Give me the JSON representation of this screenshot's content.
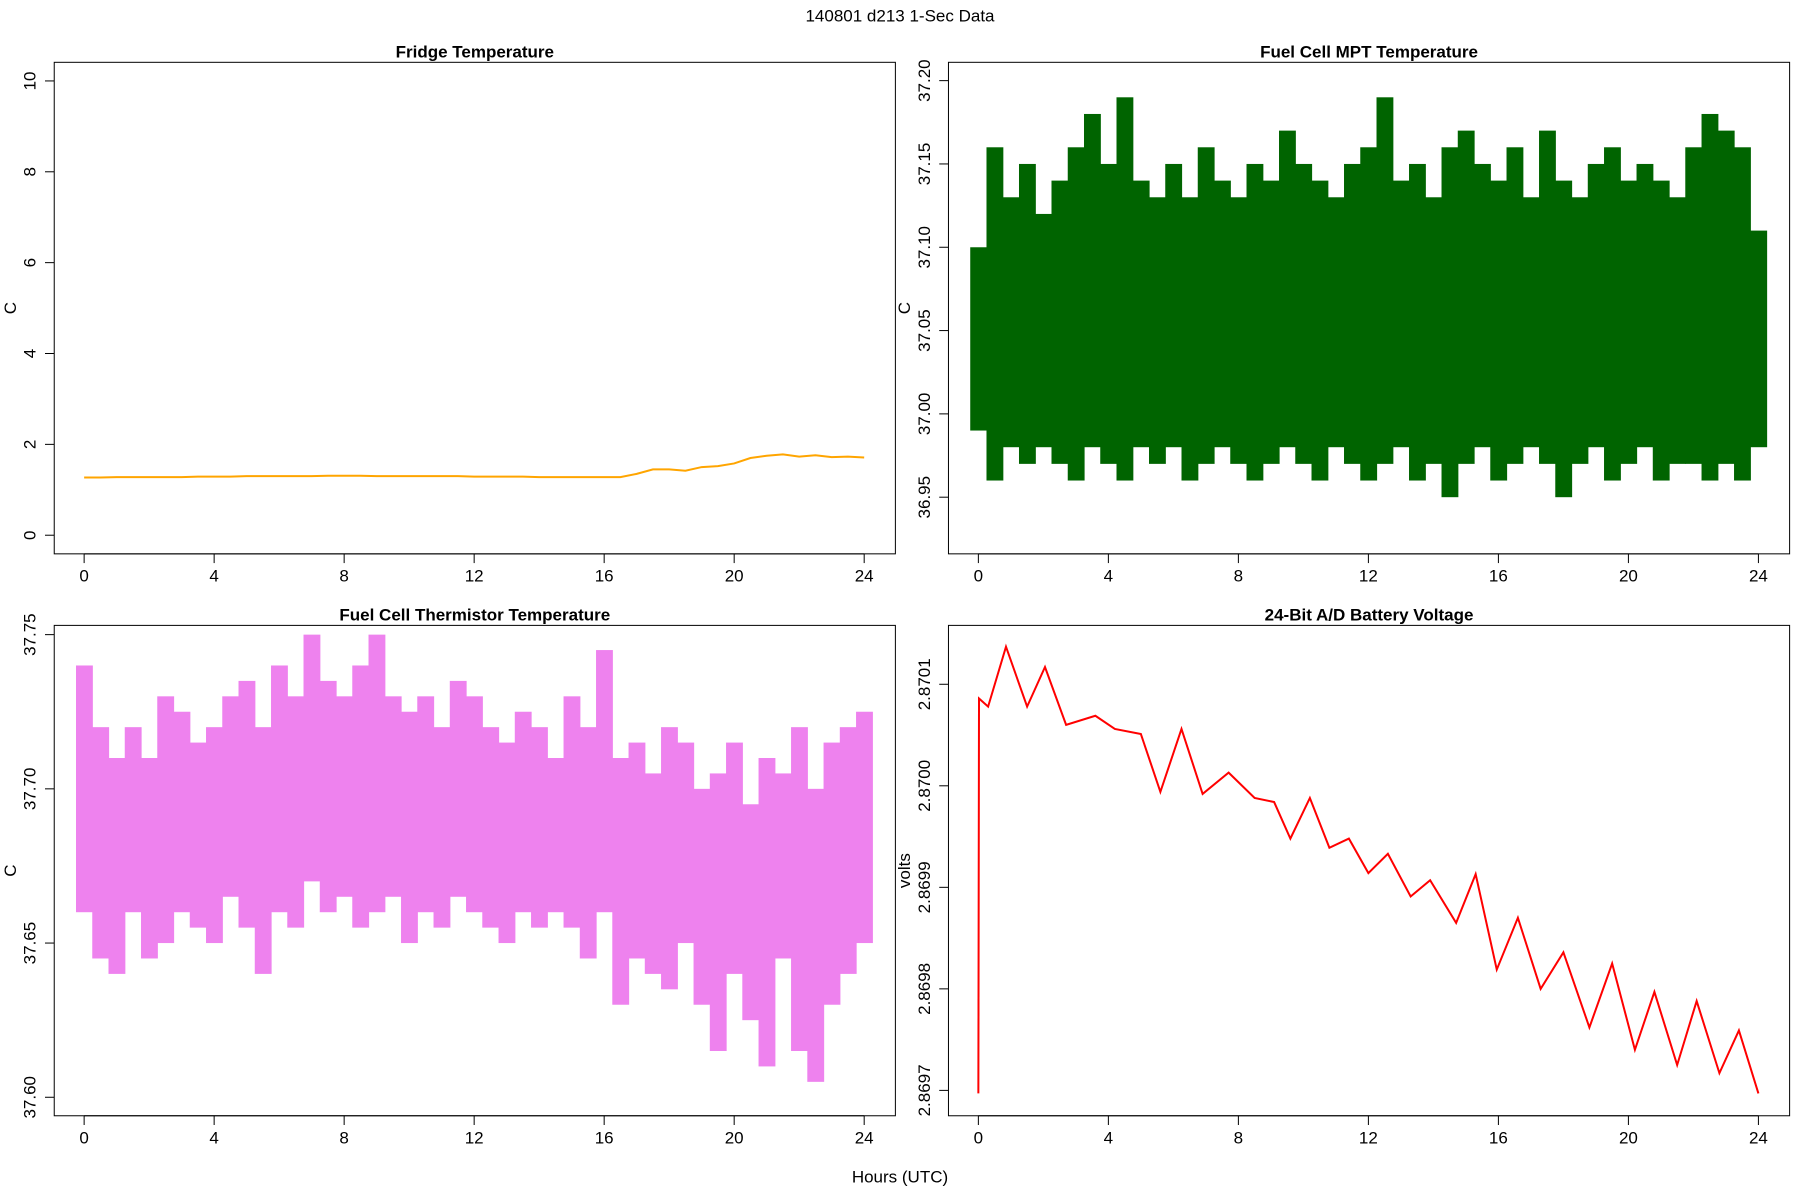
{
  "title": "140801   d213   1-Sec Data",
  "xlabel": "Hours (UTC)",
  "chart_data": [
    {
      "type": "line",
      "title": "Fridge Temperature",
      "ylabel": "C",
      "color": "#ffa500",
      "x": [
        0,
        0.5,
        1,
        1.5,
        2,
        2.5,
        3,
        3.5,
        4,
        4.5,
        5,
        5.5,
        6,
        6.5,
        7,
        7.5,
        8,
        8.5,
        9,
        9.5,
        10,
        10.5,
        11,
        11.5,
        12,
        12.5,
        13,
        13.5,
        14,
        14.5,
        15,
        15.5,
        16,
        16.5,
        17,
        17.5,
        18,
        18.5,
        19,
        19.5,
        20,
        20.5,
        21,
        21.5,
        22,
        22.5,
        23,
        23.5,
        24
      ],
      "values": [
        1.27,
        1.27,
        1.28,
        1.28,
        1.28,
        1.28,
        1.28,
        1.29,
        1.29,
        1.29,
        1.3,
        1.3,
        1.3,
        1.3,
        1.3,
        1.31,
        1.31,
        1.31,
        1.3,
        1.3,
        1.3,
        1.3,
        1.3,
        1.3,
        1.29,
        1.29,
        1.29,
        1.29,
        1.28,
        1.28,
        1.28,
        1.28,
        1.28,
        1.28,
        1.35,
        1.45,
        1.45,
        1.42,
        1.5,
        1.52,
        1.58,
        1.7,
        1.75,
        1.78,
        1.73,
        1.76,
        1.72,
        1.73,
        1.71
      ],
      "xlim": [
        -0.92,
        24.96
      ],
      "xticks": [
        0,
        4,
        8,
        12,
        16,
        20,
        24
      ],
      "ylim": [
        -0.41,
        10.41
      ],
      "yticks": [
        0,
        2,
        4,
        6,
        8,
        10
      ]
    },
    {
      "type": "band",
      "title": "Fuel Cell MPT Temperature",
      "ylabel": "C",
      "color": "#006400",
      "x": [
        0,
        0.5,
        1,
        1.5,
        2,
        2.5,
        3,
        3.5,
        4,
        4.5,
        5,
        5.5,
        6,
        6.5,
        7,
        7.5,
        8,
        8.5,
        9,
        9.5,
        10,
        10.5,
        11,
        11.5,
        12,
        12.5,
        13,
        13.5,
        14,
        14.5,
        15,
        15.5,
        16,
        16.5,
        17,
        17.5,
        18,
        18.5,
        19,
        19.5,
        20,
        20.5,
        21,
        21.5,
        22,
        22.5,
        23,
        23.5,
        24
      ],
      "low": [
        36.99,
        36.96,
        36.98,
        36.97,
        36.98,
        36.97,
        36.96,
        36.98,
        36.97,
        36.96,
        36.98,
        36.97,
        36.98,
        36.96,
        36.97,
        36.98,
        36.97,
        36.96,
        36.97,
        36.98,
        36.97,
        36.96,
        36.98,
        36.97,
        36.96,
        36.97,
        36.98,
        36.96,
        36.97,
        36.95,
        36.97,
        36.98,
        36.96,
        36.97,
        36.98,
        36.97,
        36.95,
        36.97,
        36.98,
        36.96,
        36.97,
        36.98,
        36.96,
        36.97,
        36.97,
        36.96,
        36.97,
        36.96,
        36.98
      ],
      "high": [
        37.1,
        37.16,
        37.13,
        37.15,
        37.12,
        37.14,
        37.16,
        37.18,
        37.15,
        37.19,
        37.14,
        37.13,
        37.15,
        37.13,
        37.16,
        37.14,
        37.13,
        37.15,
        37.14,
        37.17,
        37.15,
        37.14,
        37.13,
        37.15,
        37.16,
        37.19,
        37.14,
        37.15,
        37.13,
        37.16,
        37.17,
        37.15,
        37.14,
        37.16,
        37.13,
        37.17,
        37.14,
        37.13,
        37.15,
        37.16,
        37.14,
        37.15,
        37.14,
        37.13,
        37.16,
        37.18,
        37.17,
        37.16,
        37.11
      ],
      "xlim": [
        -0.92,
        24.96
      ],
      "xticks": [
        0,
        4,
        8,
        12,
        16,
        20,
        24
      ],
      "ylim": [
        36.916,
        37.211
      ],
      "yticks": [
        36.95,
        {
          "value": 37,
          "label": "37.00"
        },
        37.05,
        {
          "value": 37.1,
          "label": "37.10"
        },
        37.15,
        {
          "value": 37.2,
          "label": "37.20"
        }
      ]
    },
    {
      "type": "band",
      "title": "Fuel Cell Thermistor Temperature",
      "ylabel": "C",
      "color": "#ee82ee",
      "x": [
        0,
        0.5,
        1,
        1.5,
        2,
        2.5,
        3,
        3.5,
        4,
        4.5,
        5,
        5.5,
        6,
        6.5,
        7,
        7.5,
        8,
        8.5,
        9,
        9.5,
        10,
        10.5,
        11,
        11.5,
        12,
        12.5,
        13,
        13.5,
        14,
        14.5,
        15,
        15.5,
        16,
        16.5,
        17,
        17.5,
        18,
        18.5,
        19,
        19.5,
        20,
        20.5,
        21,
        21.5,
        22,
        22.5,
        23,
        23.5,
        24
      ],
      "low": [
        37.66,
        37.645,
        37.64,
        37.66,
        37.645,
        37.65,
        37.66,
        37.655,
        37.65,
        37.665,
        37.655,
        37.64,
        37.66,
        37.655,
        37.67,
        37.66,
        37.665,
        37.655,
        37.66,
        37.665,
        37.65,
        37.66,
        37.655,
        37.665,
        37.66,
        37.655,
        37.65,
        37.66,
        37.655,
        37.66,
        37.655,
        37.645,
        37.66,
        37.63,
        37.645,
        37.64,
        37.635,
        37.65,
        37.63,
        37.615,
        37.64,
        37.625,
        37.61,
        37.645,
        37.615,
        37.605,
        37.63,
        37.64,
        37.65
      ],
      "high": [
        37.74,
        37.72,
        37.71,
        37.72,
        37.71,
        37.73,
        37.725,
        37.715,
        37.72,
        37.73,
        37.735,
        37.72,
        37.74,
        37.73,
        37.75,
        37.735,
        37.73,
        37.74,
        37.75,
        37.73,
        37.725,
        37.73,
        37.72,
        37.735,
        37.73,
        37.72,
        37.715,
        37.725,
        37.72,
        37.71,
        37.73,
        37.72,
        37.745,
        37.71,
        37.715,
        37.705,
        37.72,
        37.715,
        37.7,
        37.705,
        37.715,
        37.695,
        37.71,
        37.705,
        37.72,
        37.7,
        37.715,
        37.72,
        37.725
      ],
      "xlim": [
        -0.92,
        24.96
      ],
      "xticks": [
        0,
        4,
        8,
        12,
        16,
        20,
        24
      ],
      "ylim": [
        37.594,
        37.753
      ],
      "yticks": [
        {
          "value": 37.6,
          "label": "37.60"
        },
        37.65,
        {
          "value": 37.7,
          "label": "37.70"
        },
        37.75
      ]
    },
    {
      "type": "line",
      "title": "24-Bit A/D Battery Voltage",
      "ylabel": "volts",
      "color": "#ff0000",
      "x": [
        0,
        0.02,
        0.3,
        0.85,
        1.5,
        2.05,
        2.7,
        3.6,
        4.2,
        5.0,
        5.6,
        6.25,
        6.9,
        7.7,
        8.5,
        9.1,
        9.6,
        10.2,
        10.8,
        11.4,
        12.0,
        12.6,
        13.3,
        13.9,
        14.7,
        15.3,
        15.95,
        16.6,
        17.3,
        18.0,
        18.8,
        19.5,
        20.2,
        20.8,
        21.5,
        22.1,
        22.8,
        23.4,
        24.0
      ],
      "values": [
        2.869697,
        2.870086,
        2.870078,
        2.870137,
        2.870078,
        2.870117,
        2.87006,
        2.870069,
        2.870056,
        2.870051,
        2.869994,
        2.870056,
        2.869992,
        2.870013,
        2.869988,
        2.869984,
        2.869948,
        2.869988,
        2.869939,
        2.869948,
        2.869914,
        2.869933,
        2.869891,
        2.869907,
        2.869865,
        2.869913,
        2.869819,
        2.86987,
        2.8698,
        2.869836,
        2.869762,
        2.869825,
        2.86974,
        2.869797,
        2.869725,
        2.869788,
        2.869717,
        2.869759,
        2.869697
      ],
      "xlim": [
        -0.92,
        24.96
      ],
      "xticks": [
        0,
        4,
        8,
        12,
        16,
        20,
        24
      ],
      "ylim": [
        2.869675,
        2.870158
      ],
      "yticks": [
        2.8697,
        2.8698,
        2.8699,
        {
          "value": 2.87,
          "label": "2.8700"
        },
        2.8701
      ]
    }
  ]
}
